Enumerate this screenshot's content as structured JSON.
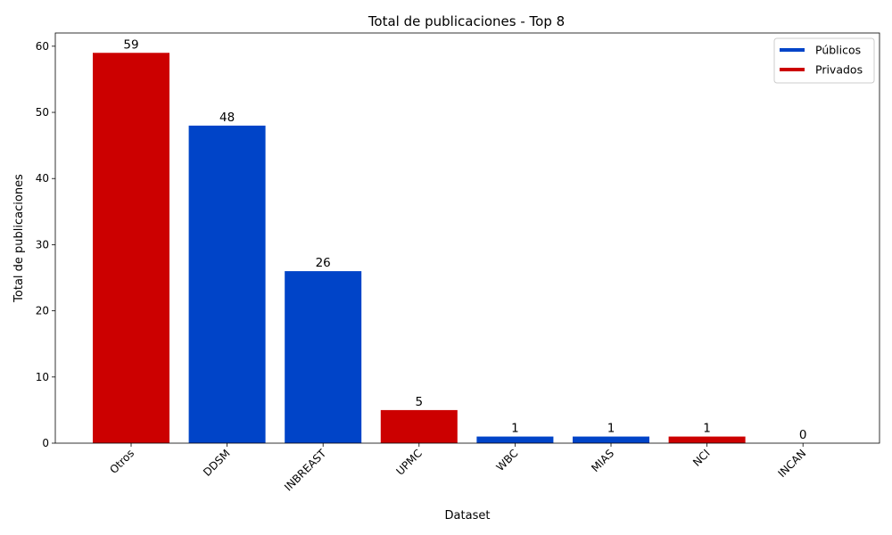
{
  "colors": {
    "publicos": "#0044c8",
    "privados": "#cc0000",
    "axis": "#000000",
    "legend_border": "#cccccc"
  },
  "chart_data": {
    "type": "bar",
    "title": "Total de publicaciones - Top 8",
    "xlabel": "Dataset",
    "ylabel": "Total de publicaciones",
    "ylim": [
      0,
      62
    ],
    "yticks": [
      0,
      10,
      20,
      30,
      40,
      50,
      60
    ],
    "grid": false,
    "legend_position": "top-right",
    "legend": [
      {
        "label": "Públicos",
        "group": "publicos"
      },
      {
        "label": "Privados",
        "group": "privados"
      }
    ],
    "categories": [
      "Otros",
      "DDSM",
      "INBREAST",
      "UPMC",
      "WBC",
      "MIAS",
      "NCI",
      "INCAN"
    ],
    "values": [
      59,
      48,
      26,
      5,
      1,
      1,
      1,
      0
    ],
    "groups": [
      "privados",
      "publicos",
      "publicos",
      "privados",
      "publicos",
      "publicos",
      "privados",
      "privados"
    ],
    "bar_labels": [
      "59",
      "48",
      "26",
      "5",
      "1",
      "1",
      "1",
      "0"
    ]
  }
}
